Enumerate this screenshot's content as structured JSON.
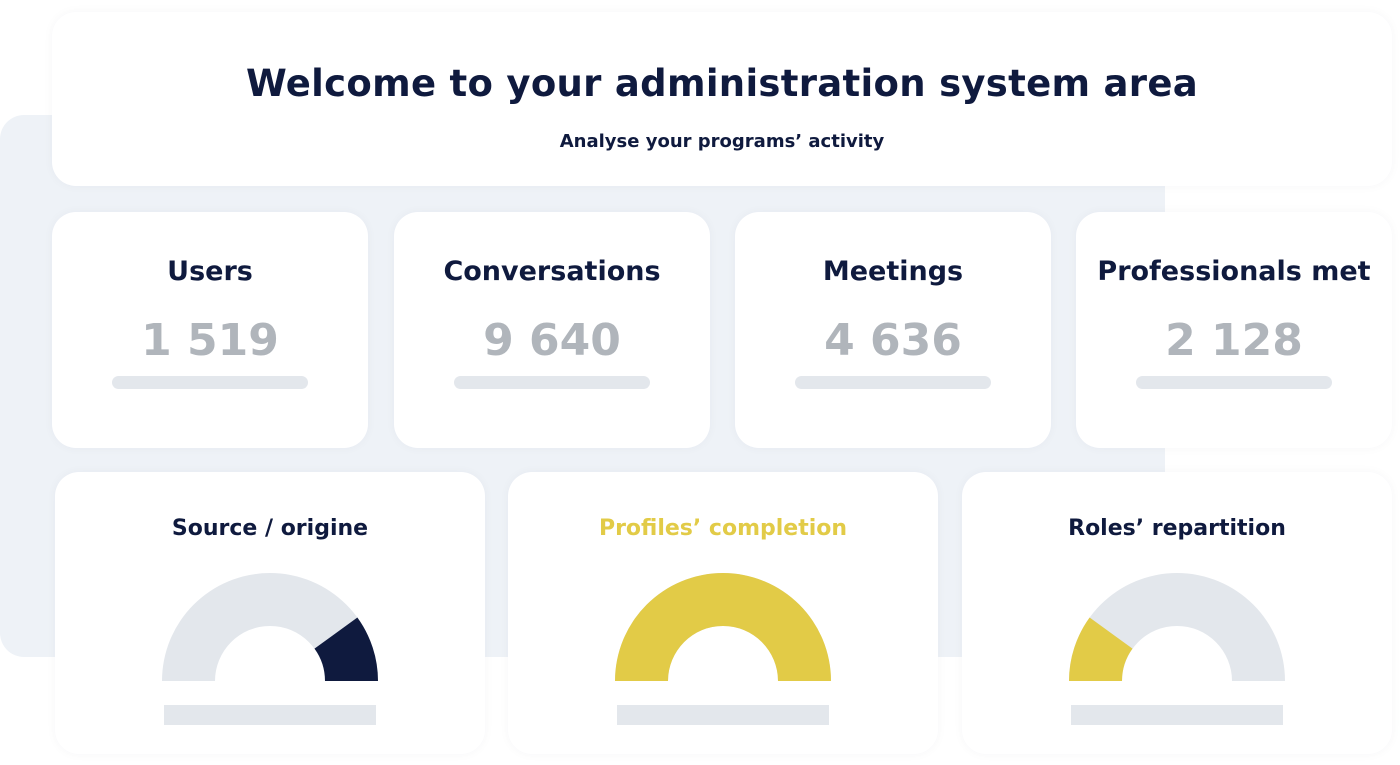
{
  "header": {
    "title": "Welcome to your administration system area",
    "subtitle": "Analyse your programs’ activity"
  },
  "stats": [
    {
      "label": "Users",
      "value": "1 519"
    },
    {
      "label": "Conversations",
      "value": "9 640"
    },
    {
      "label": "Meetings",
      "value": "4 636"
    },
    {
      "label": "Professionals met",
      "value": "2 128"
    }
  ],
  "colors": {
    "navy": "#0f1a3e",
    "yellow": "#e2cb47",
    "track": "#e3e7ec",
    "muted": "#b0b5bb"
  },
  "gauges": [
    {
      "label": "Source / origine",
      "label_color": "#0f1a3e",
      "fill_color": "#0f1a3e",
      "fill_from": 0.8,
      "fill_to": 1.0
    },
    {
      "label": "Profiles’ completion",
      "label_color": "#e2cb47",
      "fill_color": "#e2cb47",
      "fill_from": 0.0,
      "fill_to": 1.0
    },
    {
      "label": "Roles’ repartition",
      "label_color": "#0f1a3e",
      "fill_color": "#e2cb47",
      "fill_from": 0.0,
      "fill_to": 0.2
    }
  ]
}
